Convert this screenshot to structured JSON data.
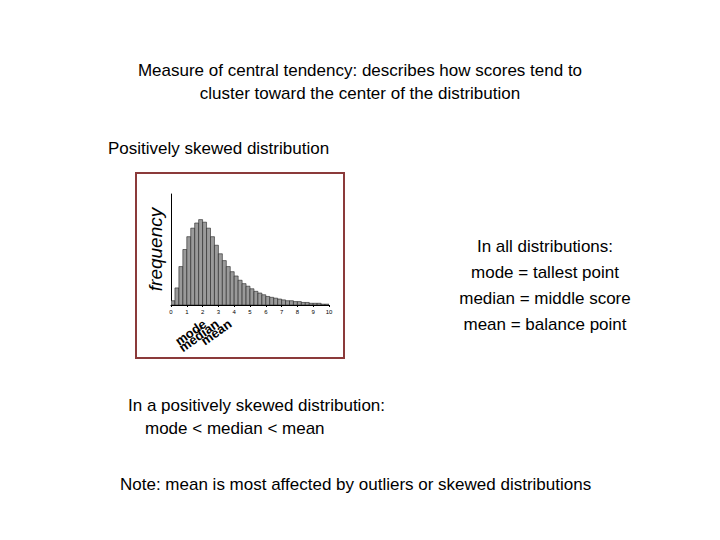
{
  "title": [
    "Measure of central tendency: describes how scores tend to",
    "cluster toward the center of the distribution"
  ],
  "subtitle": "Positively skewed distribution",
  "box": [
    "In all distributions:",
    "mode = tallest point",
    "median = middle score",
    "mean = balance point"
  ],
  "positive_skew": [
    "In a positively skewed distribution:",
    "mode < median < mean"
  ],
  "note": "Note: mean is most affected by outliers or skewed distributions",
  "chart_data": {
    "type": "histogram",
    "ylabel": "frequency",
    "color": "#9a9a9a",
    "bins": [
      0,
      0.25,
      0.5,
      0.75,
      1,
      1.25,
      1.5,
      1.75,
      2,
      2.25,
      2.5,
      2.75,
      3,
      3.25,
      3.5,
      3.75,
      4,
      4.25,
      4.5,
      4.75,
      5,
      5.25,
      5.5,
      5.75,
      6,
      6.25,
      6.5,
      6.75,
      7,
      7.25,
      7.5,
      7.75,
      8,
      8.25,
      8.5,
      8.75,
      9,
      9.25,
      9.5,
      9.75,
      10
    ],
    "values": [
      5,
      20,
      45,
      65,
      80,
      90,
      96,
      100,
      97,
      90,
      80,
      70,
      60,
      52,
      45,
      39,
      34,
      29,
      25,
      22,
      19,
      16,
      14,
      12,
      10,
      9,
      8,
      7,
      6,
      5,
      5,
      4,
      4,
      3,
      3,
      2,
      2,
      2,
      1,
      1
    ],
    "xlim": [
      0,
      10
    ],
    "xticks": [
      0,
      1,
      2,
      3,
      4,
      5,
      6,
      7,
      8,
      9,
      10
    ],
    "ylim": [
      0,
      130
    ],
    "grid": false,
    "tick_labels": "x",
    "annotations": [
      {
        "text": "mode",
        "x": 1.9
      },
      {
        "text": "median",
        "x": 2.7
      },
      {
        "text": "mean",
        "x": 3.5
      }
    ]
  }
}
